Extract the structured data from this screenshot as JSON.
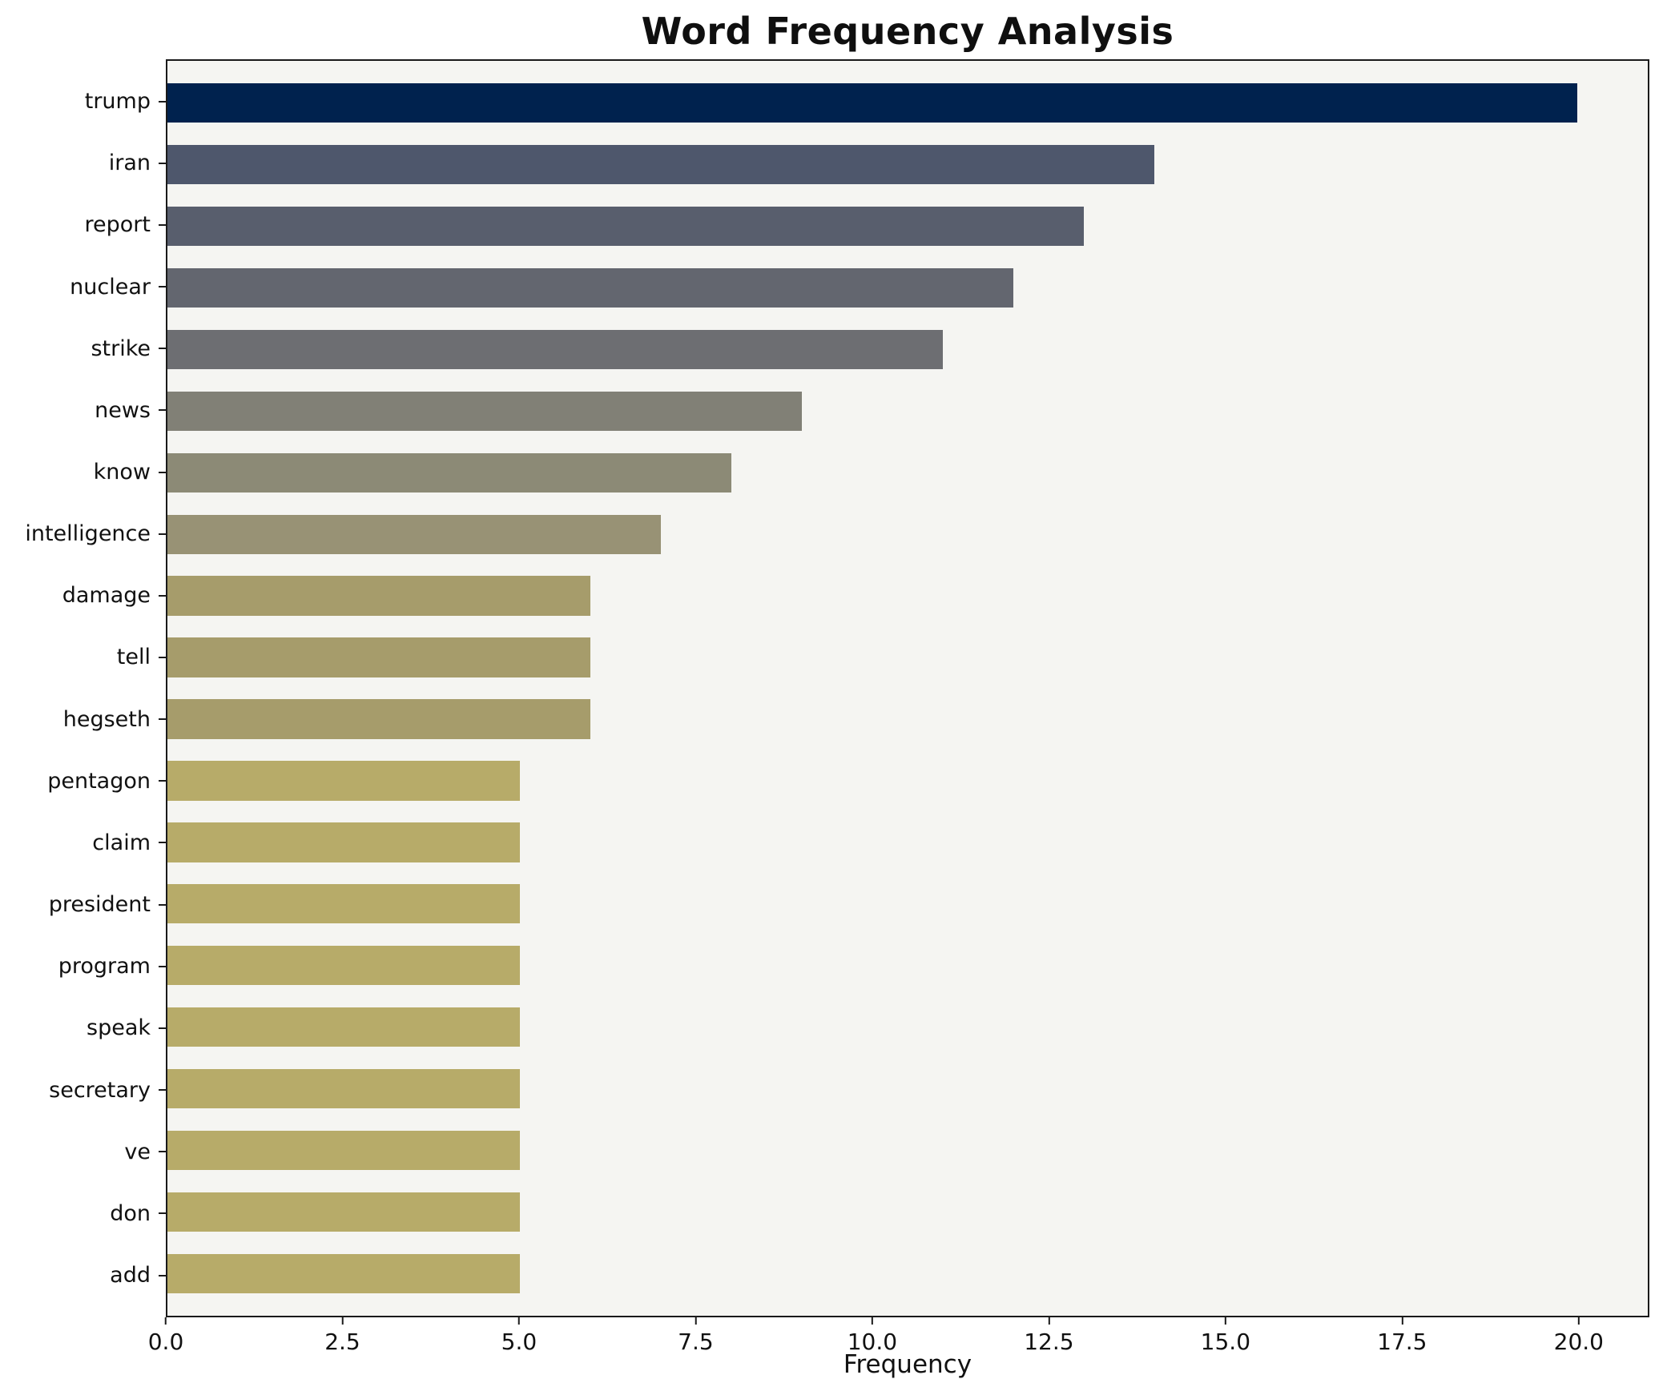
{
  "chart_data": {
    "type": "bar",
    "orientation": "horizontal",
    "title": "Word Frequency Analysis",
    "xlabel": "Frequency",
    "ylabel": "",
    "xlim": [
      0,
      21
    ],
    "x_ticks": [
      0.0,
      2.5,
      5.0,
      7.5,
      10.0,
      12.5,
      15.0,
      17.5,
      20.0
    ],
    "grid": false,
    "legend": "none",
    "plot_background": "#f5f5f2",
    "figure_background": "#ffffff",
    "categories": [
      "trump",
      "iran",
      "report",
      "nuclear",
      "strike",
      "news",
      "know",
      "intelligence",
      "damage",
      "tell",
      "hegseth",
      "pentagon",
      "claim",
      "president",
      "program",
      "speak",
      "secretary",
      "ve",
      "don",
      "add"
    ],
    "values": [
      20,
      14,
      13,
      12,
      11,
      9,
      8,
      7,
      6,
      6,
      6,
      5,
      5,
      5,
      5,
      5,
      5,
      5,
      5,
      5
    ],
    "bar_colors": [
      "#00224e",
      "#4e576c",
      "#585e6d",
      "#63666f",
      "#6d6e72",
      "#818076",
      "#8c8a76",
      "#989275",
      "#a69c6b",
      "#a69c6b",
      "#a69c6b",
      "#b7ab69",
      "#b7ab69",
      "#b7ab69",
      "#b7ab69",
      "#b7ab69",
      "#b7ab69",
      "#b7ab69",
      "#b7ab69",
      "#b7ab69"
    ]
  }
}
